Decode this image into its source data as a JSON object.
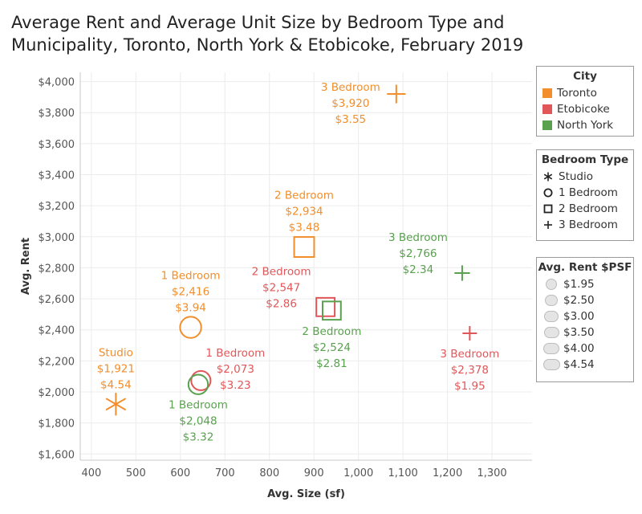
{
  "title": "Average Rent and Average Unit Size by Bedroom Type and Municipality, Toronto, North York & Etobicoke, February 2019",
  "legends": {
    "city": {
      "title": "City",
      "items": [
        {
          "label": "Toronto",
          "color": "#f28e2b"
        },
        {
          "label": "Etobicoke",
          "color": "#e15759"
        },
        {
          "label": "North York",
          "color": "#59a14f"
        }
      ]
    },
    "bedroom": {
      "title": "Bedroom Type",
      "items": [
        {
          "label": "Studio",
          "icon": "asterisk-icon"
        },
        {
          "label": "1 Bedroom",
          "icon": "circle-icon"
        },
        {
          "label": "2 Bedroom",
          "icon": "square-icon"
        },
        {
          "label": "3 Bedroom",
          "icon": "plus-icon"
        }
      ]
    },
    "psf": {
      "title": "Avg. Rent $PSF",
      "items": [
        {
          "label": "$1.95",
          "value": 1.95
        },
        {
          "label": "$2.50",
          "value": 2.5
        },
        {
          "label": "$3.00",
          "value": 3.0
        },
        {
          "label": "$3.50",
          "value": 3.5
        },
        {
          "label": "$4.00",
          "value": 4.0
        },
        {
          "label": "$4.54",
          "value": 4.54
        }
      ]
    }
  },
  "chart_data": {
    "type": "scatter",
    "xlabel": "Avg. Size (sf)",
    "ylabel": "Avg. Rent",
    "xlim": [
      375,
      1390
    ],
    "ylim": [
      1560,
      4060
    ],
    "xticks": [
      400,
      500,
      600,
      700,
      800,
      900,
      1000,
      1100,
      1200,
      1300
    ],
    "xtick_labels": [
      "400",
      "500",
      "600",
      "700",
      "800",
      "900",
      "1,000",
      "1,100",
      "1,200",
      "1,300"
    ],
    "yticks": [
      1600,
      1800,
      2000,
      2200,
      2400,
      2600,
      2800,
      3000,
      3200,
      3400,
      3600,
      3800,
      4000
    ],
    "ytick_labels": [
      "$1,600",
      "$1,800",
      "$2,000",
      "$2,200",
      "$2,400",
      "$2,600",
      "$2,800",
      "$3,000",
      "$3,200",
      "$3,400",
      "$3,600",
      "$3,800",
      "$4,000"
    ],
    "grid": true,
    "points": [
      {
        "city": "Toronto",
        "type": "Studio",
        "shape": "asterisk",
        "x": 455,
        "y": 1921,
        "label": [
          "Studio",
          "$1,921",
          "$4.54"
        ],
        "label_pos": "above"
      },
      {
        "city": "Toronto",
        "type": "1 Bedroom",
        "shape": "circle",
        "x": 623,
        "y": 2416,
        "label": [
          "1 Bedroom",
          "$2,416",
          "$3.94"
        ],
        "label_pos": "above"
      },
      {
        "city": "Toronto",
        "type": "2 Bedroom",
        "shape": "square",
        "x": 878,
        "y": 2934,
        "label": [
          "2 Bedroom",
          "$2,934",
          "$3.48"
        ],
        "label_pos": "above"
      },
      {
        "city": "Toronto",
        "type": "3 Bedroom",
        "shape": "plus",
        "x": 1085,
        "y": 3920,
        "label": [
          "3 Bedroom",
          "$3,920",
          "$3.55"
        ],
        "label_pos": "left"
      },
      {
        "city": "Etobicoke",
        "type": "1 Bedroom",
        "shape": "circle",
        "x": 646,
        "y": 2073,
        "label": [
          "1 Bedroom",
          "$2,073",
          "$3.23"
        ],
        "label_pos": "above-right"
      },
      {
        "city": "Etobicoke",
        "type": "2 Bedroom",
        "shape": "square",
        "x": 926,
        "y": 2547,
        "label": [
          "2 Bedroom",
          "$2,547",
          "$2.86"
        ],
        "label_pos": "above-left"
      },
      {
        "city": "Etobicoke",
        "type": "3 Bedroom",
        "shape": "plus",
        "x": 1250,
        "y": 2378,
        "label": [
          "3 Bedroom",
          "$2,378",
          "$1.95"
        ],
        "label_pos": "below"
      },
      {
        "city": "North York",
        "type": "1 Bedroom",
        "shape": "circle",
        "x": 640,
        "y": 2048,
        "label": [
          "1 Bedroom",
          "$2,048",
          "$3.32"
        ],
        "label_pos": "below"
      },
      {
        "city": "North York",
        "type": "2 Bedroom",
        "shape": "square",
        "x": 940,
        "y": 2524,
        "label": [
          "2 Bedroom",
          "$2,524",
          "$2.81"
        ],
        "label_pos": "below"
      },
      {
        "city": "North York",
        "type": "3 Bedroom",
        "shape": "plus",
        "x": 1233,
        "y": 2766,
        "label": [
          "3 Bedroom",
          "$2,766",
          "$2.34"
        ],
        "label_pos": "above-left"
      }
    ]
  }
}
